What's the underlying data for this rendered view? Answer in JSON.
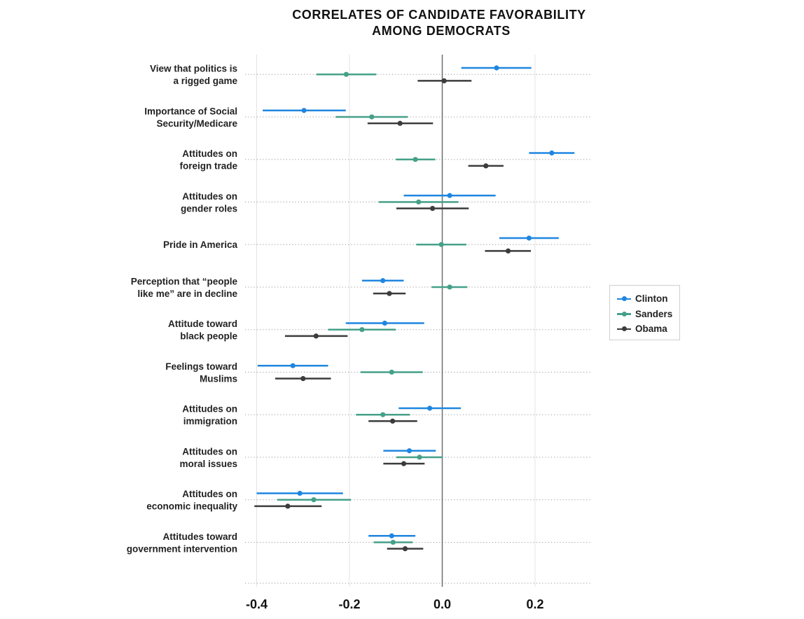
{
  "chart_data": {
    "type": "dot-errorbar",
    "title": [
      "CORRELATES OF CANDIDATE FAVORABILITY",
      "AMONG DEMOCRATS"
    ],
    "xlim": [
      -0.42,
      0.32
    ],
    "x_ticks": [
      -0.4,
      -0.2,
      0.0,
      0.2
    ],
    "x_tick_labels": [
      "-0.4",
      "-0.2",
      "0.0",
      "0.2"
    ],
    "grid": true,
    "legend_position": "right",
    "categories": [
      [
        "View that politics is",
        "a rigged game"
      ],
      [
        "Importance of Social",
        "Security/Medicare"
      ],
      [
        "Attitudes on",
        "foreign trade"
      ],
      [
        "Attitudes on",
        "gender roles"
      ],
      [
        "Pride in America"
      ],
      [
        "Perception that “people",
        "like me” are in decline"
      ],
      [
        "Attitude toward",
        "black people"
      ],
      [
        "Feelings toward",
        "Muslims"
      ],
      [
        "Attitudes on",
        "immigration"
      ],
      [
        "Attitudes on",
        "moral issues"
      ],
      [
        "Attitudes on",
        "economic inequality"
      ],
      [
        "Attitudes toward",
        "government intervention"
      ]
    ],
    "series": [
      {
        "name": "Clinton",
        "color": "#1f86e0",
        "points": [
          {
            "v": 0.117,
            "lo": 0.041,
            "hi": 0.192
          },
          {
            "v": -0.298,
            "lo": -0.387,
            "hi": -0.208
          },
          {
            "v": 0.236,
            "lo": 0.187,
            "hi": 0.285
          },
          {
            "v": 0.016,
            "lo": -0.083,
            "hi": 0.115
          },
          {
            "v": 0.187,
            "lo": 0.123,
            "hi": 0.251
          },
          {
            "v": -0.128,
            "lo": -0.173,
            "hi": -0.083
          },
          {
            "v": -0.124,
            "lo": -0.208,
            "hi": -0.039
          },
          {
            "v": -0.322,
            "lo": -0.398,
            "hi": -0.246
          },
          {
            "v": -0.027,
            "lo": -0.094,
            "hi": 0.04
          },
          {
            "v": -0.071,
            "lo": -0.127,
            "hi": -0.014
          },
          {
            "v": -0.307,
            "lo": -0.4,
            "hi": -0.214
          },
          {
            "v": -0.109,
            "lo": -0.159,
            "hi": -0.058
          }
        ]
      },
      {
        "name": "Sanders",
        "color": "#46a089",
        "points": [
          {
            "v": -0.207,
            "lo": -0.271,
            "hi": -0.142
          },
          {
            "v": -0.152,
            "lo": -0.23,
            "hi": -0.074
          },
          {
            "v": -0.058,
            "lo": -0.1,
            "hi": -0.015
          },
          {
            "v": -0.051,
            "lo": -0.137,
            "hi": 0.035
          },
          {
            "v": -0.002,
            "lo": -0.056,
            "hi": 0.052
          },
          {
            "v": 0.016,
            "lo": -0.023,
            "hi": 0.054
          },
          {
            "v": -0.173,
            "lo": -0.246,
            "hi": -0.1
          },
          {
            "v": -0.109,
            "lo": -0.176,
            "hi": -0.042
          },
          {
            "v": -0.128,
            "lo": -0.186,
            "hi": -0.07
          },
          {
            "v": -0.049,
            "lo": -0.099,
            "hi": 0.001
          },
          {
            "v": -0.277,
            "lo": -0.356,
            "hi": -0.197
          },
          {
            "v": -0.106,
            "lo": -0.148,
            "hi": -0.064
          }
        ]
      },
      {
        "name": "Obama",
        "color": "#3c3c3c",
        "points": [
          {
            "v": 0.004,
            "lo": -0.053,
            "hi": 0.063
          },
          {
            "v": -0.091,
            "lo": -0.161,
            "hi": -0.02
          },
          {
            "v": 0.094,
            "lo": 0.056,
            "hi": 0.132
          },
          {
            "v": -0.021,
            "lo": -0.099,
            "hi": 0.057
          },
          {
            "v": 0.142,
            "lo": 0.092,
            "hi": 0.191
          },
          {
            "v": -0.114,
            "lo": -0.149,
            "hi": -0.079
          },
          {
            "v": -0.272,
            "lo": -0.339,
            "hi": -0.204
          },
          {
            "v": -0.3,
            "lo": -0.36,
            "hi": -0.24
          },
          {
            "v": -0.107,
            "lo": -0.159,
            "hi": -0.054
          },
          {
            "v": -0.083,
            "lo": -0.127,
            "hi": -0.038
          },
          {
            "v": -0.333,
            "lo": -0.405,
            "hi": -0.26
          },
          {
            "v": -0.08,
            "lo": -0.119,
            "hi": -0.041
          }
        ]
      }
    ]
  }
}
